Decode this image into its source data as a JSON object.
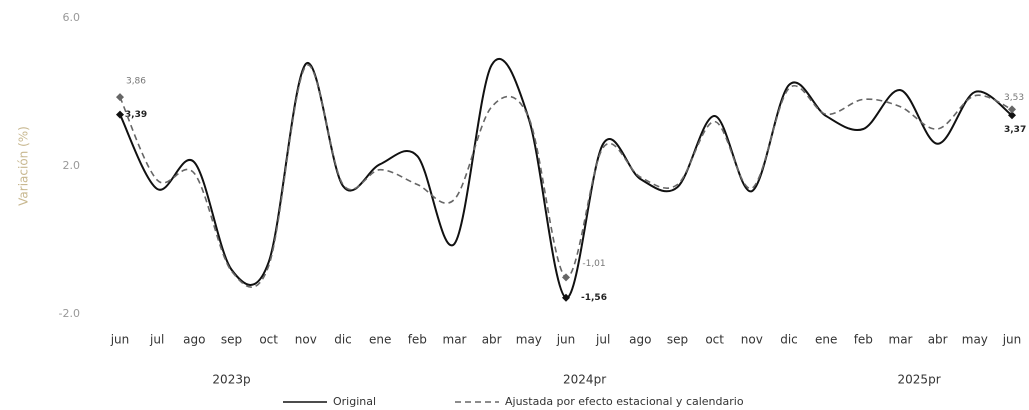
{
  "chart_data": {
    "type": "line",
    "y_label": "Variación (%)",
    "categories": [
      "jun",
      "jul",
      "ago",
      "sep",
      "oct",
      "nov",
      "dic",
      "ene",
      "feb",
      "mar",
      "abr",
      "may",
      "jun",
      "jul",
      "ago",
      "sep",
      "oct",
      "nov",
      "dic",
      "ene",
      "feb",
      "mar",
      "abr",
      "may",
      "jun"
    ],
    "x_groups": [
      {
        "label": "2023p",
        "count": 7
      },
      {
        "label": "2024pr",
        "count": 12
      },
      {
        "label": "2025pr",
        "count": 6
      }
    ],
    "series": [
      {
        "name": "Original",
        "color": "#111111",
        "dash": false,
        "values": [
          3.39,
          1.38,
          2.1,
          -0.8,
          -0.6,
          4.76,
          1.46,
          2.05,
          2.27,
          -0.1,
          4.73,
          3.27,
          -1.56,
          2.6,
          1.65,
          1.43,
          3.35,
          1.32,
          4.19,
          3.35,
          3.0,
          4.05,
          2.6,
          4.0,
          3.37
        ],
        "value_labels": [
          "3,39",
          null,
          null,
          null,
          null,
          null,
          null,
          null,
          null,
          null,
          null,
          null,
          "-1,56",
          null,
          null,
          null,
          null,
          null,
          null,
          null,
          null,
          null,
          null,
          null,
          "3,37"
        ]
      },
      {
        "name": "Ajustada por efecto estacional y calendario",
        "color": "#666666",
        "dash": true,
        "values": [
          3.86,
          1.62,
          1.8,
          -0.84,
          -0.7,
          4.7,
          1.5,
          1.9,
          1.5,
          1.1,
          3.6,
          3.3,
          -1.01,
          2.5,
          1.7,
          1.5,
          3.2,
          1.4,
          4.1,
          3.4,
          3.8,
          3.6,
          3.0,
          3.9,
          3.53
        ],
        "value_labels": [
          "3,86",
          null,
          null,
          null,
          null,
          null,
          null,
          null,
          null,
          null,
          null,
          null,
          "-1,01",
          null,
          null,
          null,
          null,
          null,
          null,
          null,
          null,
          null,
          null,
          null,
          "3,53"
        ]
      }
    ],
    "ylim": [
      -2,
      6
    ],
    "yticks": [
      {
        "value": -2,
        "label": "-2.0"
      },
      {
        "value": 2,
        "label": "2.0"
      },
      {
        "value": 6,
        "label": "6.0"
      }
    ],
    "grid": false,
    "legend": "bottom"
  }
}
